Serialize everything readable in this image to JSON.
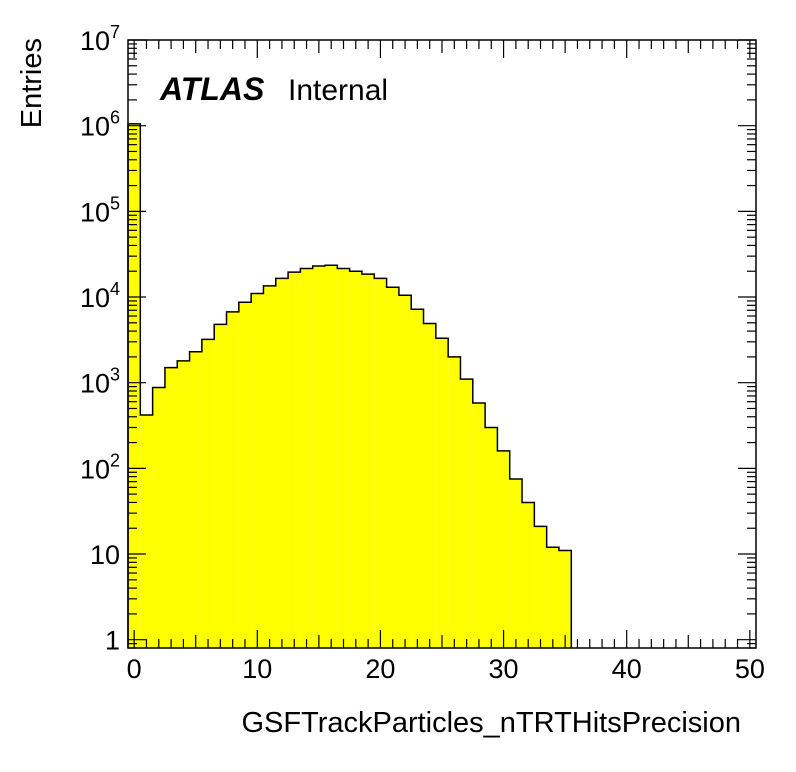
{
  "chart_data": {
    "type": "histogram",
    "xlabel": "GSFTrackParticles_nTRTHitsPrecision",
    "ylabel": "Entries",
    "xlim": [
      -0.5,
      50.5
    ],
    "ylim": [
      0.8,
      10000000
    ],
    "log_y": true,
    "bin_width": 1,
    "x_ticks": [
      "0",
      "10",
      "20",
      "30",
      "40",
      "50"
    ],
    "y_ticks": [
      {
        "base": "1",
        "exp": ""
      },
      {
        "base": "10",
        "exp": ""
      },
      {
        "base": "10",
        "exp": "2"
      },
      {
        "base": "10",
        "exp": "3"
      },
      {
        "base": "10",
        "exp": "4"
      },
      {
        "base": "10",
        "exp": "5"
      },
      {
        "base": "10",
        "exp": "6"
      },
      {
        "base": "10",
        "exp": "7"
      }
    ],
    "bins": [
      {
        "x": 0,
        "y": 1050000
      },
      {
        "x": 1,
        "y": 420
      },
      {
        "x": 2,
        "y": 880
      },
      {
        "x": 3,
        "y": 1500
      },
      {
        "x": 4,
        "y": 1800
      },
      {
        "x": 5,
        "y": 2300
      },
      {
        "x": 6,
        "y": 3200
      },
      {
        "x": 7,
        "y": 4800
      },
      {
        "x": 8,
        "y": 6700
      },
      {
        "x": 9,
        "y": 8700
      },
      {
        "x": 10,
        "y": 11000
      },
      {
        "x": 11,
        "y": 13500
      },
      {
        "x": 12,
        "y": 16500
      },
      {
        "x": 13,
        "y": 19500
      },
      {
        "x": 14,
        "y": 21500
      },
      {
        "x": 15,
        "y": 23000
      },
      {
        "x": 16,
        "y": 23500
      },
      {
        "x": 17,
        "y": 21500
      },
      {
        "x": 18,
        "y": 20000
      },
      {
        "x": 19,
        "y": 18500
      },
      {
        "x": 20,
        "y": 16500
      },
      {
        "x": 21,
        "y": 13000
      },
      {
        "x": 22,
        "y": 10500
      },
      {
        "x": 23,
        "y": 7200
      },
      {
        "x": 24,
        "y": 4900
      },
      {
        "x": 25,
        "y": 3300
      },
      {
        "x": 26,
        "y": 2000
      },
      {
        "x": 27,
        "y": 1100
      },
      {
        "x": 28,
        "y": 580
      },
      {
        "x": 29,
        "y": 300
      },
      {
        "x": 30,
        "y": 160
      },
      {
        "x": 31,
        "y": 75
      },
      {
        "x": 32,
        "y": 40
      },
      {
        "x": 33,
        "y": 21
      },
      {
        "x": 34,
        "y": 12
      },
      {
        "x": 35,
        "y": 11
      }
    ],
    "fill_color": "#ffff00",
    "line_color": "#000000",
    "grid": false
  },
  "label": {
    "experiment": "ATLAS",
    "status": "Internal"
  }
}
